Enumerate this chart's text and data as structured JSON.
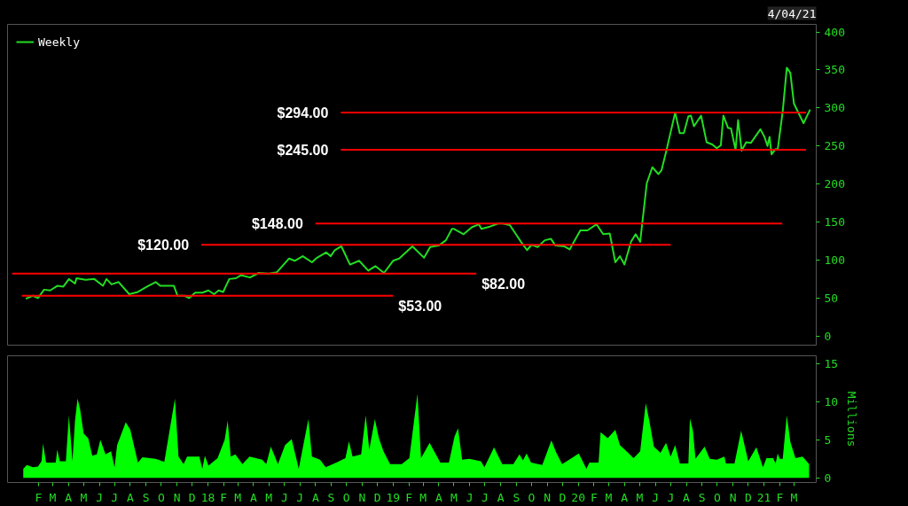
{
  "chart_data": [
    {
      "type": "line",
      "subtitle": "4/04/21",
      "legend": "top left",
      "tick_labels": "y",
      "xlim": [
        "2016-12-02",
        "2021-04-14"
      ],
      "ylim": [
        -12,
        410
      ],
      "yticks": [
        0,
        50,
        100,
        150,
        200,
        250,
        300,
        350,
        400
      ],
      "series": [
        {
          "name": "Weekly",
          "color": "#22dd22",
          "x": [
            "2017-01-07",
            "2017-01-21",
            "2017-01-31",
            "2017-02-12",
            "2017-02-24",
            "2017-03-10",
            "2017-03-22",
            "2017-04-02",
            "2017-04-14",
            "2017-04-17",
            "2017-05-05",
            "2017-05-22",
            "2017-06-08",
            "2017-06-15",
            "2017-06-25",
            "2017-07-09",
            "2017-07-30",
            "2017-08-16",
            "2017-09-03",
            "2017-09-20",
            "2017-09-29",
            "2017-10-26",
            "2017-11-02",
            "2017-11-16",
            "2017-11-25",
            "2017-12-07",
            "2017-12-21",
            "2018-01-02",
            "2018-01-13",
            "2018-01-22",
            "2018-01-31",
            "2018-02-12",
            "2018-02-25",
            "2018-03-07",
            "2018-03-25",
            "2018-04-11",
            "2018-04-29",
            "2018-05-17",
            "2018-06-10",
            "2018-06-21",
            "2018-07-07",
            "2018-07-25",
            "2018-08-04",
            "2018-08-22",
            "2018-08-31",
            "2018-09-08",
            "2018-09-21",
            "2018-10-08",
            "2018-10-26",
            "2018-11-13",
            "2018-11-27",
            "2018-12-14",
            "2019-01-01",
            "2019-01-13",
            "2019-02-08",
            "2019-03-03",
            "2019-03-15",
            "2019-04-01",
            "2019-04-15",
            "2019-04-27",
            "2019-05-01",
            "2019-05-20",
            "2019-06-05",
            "2019-06-19",
            "2019-06-24",
            "2019-07-11",
            "2019-07-27",
            "2019-08-05",
            "2019-08-19",
            "2019-08-31",
            "2019-09-10",
            "2019-09-22",
            "2019-10-01",
            "2019-10-13",
            "2019-10-27",
            "2019-11-08",
            "2019-11-17",
            "2019-12-04",
            "2019-12-15",
            "2020-01-05",
            "2020-01-19",
            "2020-02-06",
            "2020-02-19",
            "2020-03-03",
            "2020-03-14",
            "2020-03-23",
            "2020-04-01",
            "2020-04-14",
            "2020-04-23",
            "2020-05-02",
            "2020-05-15",
            "2020-05-26",
            "2020-06-07",
            "2020-06-13",
            "2020-06-22",
            "2020-07-10",
            "2020-07-19",
            "2020-07-27",
            "2020-08-05",
            "2020-08-10",
            "2020-08-16",
            "2020-08-30",
            "2020-09-10",
            "2020-09-21",
            "2020-09-30",
            "2020-10-08",
            "2020-10-13",
            "2020-10-22",
            "2020-10-28",
            "2020-11-06",
            "2020-11-11",
            "2020-11-18",
            "2020-11-27",
            "2020-12-06",
            "2020-12-25",
            "2021-01-02",
            "2021-01-08",
            "2021-01-12",
            "2021-01-16",
            "2021-01-24",
            "2021-01-28",
            "2021-02-07",
            "2021-02-15",
            "2021-02-22",
            "2021-03-01",
            "2021-03-06",
            "2021-03-20",
            "2021-04-02"
          ],
          "values": [
            49,
            53,
            50,
            61,
            60,
            66,
            65,
            75,
            69,
            76,
            74,
            75,
            66,
            75,
            68,
            71,
            55,
            58,
            65,
            71,
            66,
            66,
            53,
            53,
            50,
            57,
            57,
            60,
            55,
            60,
            58,
            75,
            76,
            80,
            77,
            83,
            82,
            84,
            102,
            99,
            105,
            97,
            103,
            110,
            105,
            113,
            118,
            94,
            99,
            86,
            92,
            83,
            99,
            102,
            118,
            103,
            117,
            119,
            126,
            141,
            141,
            134,
            143,
            147,
            141,
            144,
            148,
            148,
            146,
            134,
            124,
            113,
            120,
            117,
            126,
            128,
            119,
            118,
            114,
            139,
            139,
            147,
            134,
            135,
            97,
            105,
            94,
            124,
            134,
            124,
            201,
            222,
            213,
            218,
            242,
            294,
            267,
            267,
            289,
            290,
            276,
            290,
            255,
            252,
            247,
            251,
            290,
            274,
            273,
            245,
            284,
            244,
            255,
            254,
            272,
            262,
            250,
            262,
            239,
            246,
            245,
            296,
            353,
            346,
            306,
            299,
            280,
            298
          ]
        },
        {
          "type": "line",
          "color": "#ff0000",
          "x": [
            "2018-09-20",
            "2021-03-25"
          ],
          "values": [
            294,
            294
          ]
        },
        {
          "type": "line",
          "color": "#ff0000",
          "x": [
            "2018-09-20",
            "2021-03-25"
          ],
          "values": [
            245,
            245
          ]
        },
        {
          "type": "line",
          "color": "#ff0000",
          "x": [
            "2018-08-01",
            "2021-02-06"
          ],
          "values": [
            148,
            148
          ]
        },
        {
          "type": "line",
          "color": "#ff0000",
          "x": [
            "2017-12-19",
            "2020-07-01"
          ],
          "values": [
            120,
            120
          ]
        },
        {
          "type": "line",
          "color": "#ff0000",
          "x": [
            "2016-12-11",
            "2019-06-14"
          ],
          "values": [
            82,
            82
          ]
        },
        {
          "type": "line",
          "color": "#ff0000",
          "x": [
            "2016-12-30",
            "2019-01-01"
          ],
          "values": [
            53,
            53
          ]
        }
      ],
      "annotations": [
        {
          "text": "$294.00",
          "x": "2018-09-20",
          "y": 294
        },
        {
          "text": "$245.00",
          "x": "2018-09-20",
          "y": 245
        },
        {
          "text": "$148.00",
          "x": "2018-08-01",
          "y": 148
        },
        {
          "text": "$120.00",
          "x": "2017-12-19",
          "y": 120
        },
        {
          "text": "$82.00",
          "x": "2019-06-14",
          "y": 82
        },
        {
          "text": "$53.00",
          "x": "2019-01-01",
          "y": 53
        }
      ]
    },
    {
      "type": "area",
      "ylabel": "Millions",
      "xlim": [
        "2016-12-02",
        "2021-04-14"
      ],
      "ylim": [
        -0.6,
        16
      ],
      "yticks": [
        0,
        5,
        10,
        15
      ],
      "xticks": [
        {
          "value": "2017-02-01",
          "label": "F"
        },
        {
          "value": "2017-03-01",
          "label": "M"
        },
        {
          "value": "2017-04-01",
          "label": "A"
        },
        {
          "value": "2017-05-01",
          "label": "M"
        },
        {
          "value": "2017-06-01",
          "label": "J"
        },
        {
          "value": "2017-07-01",
          "label": "J"
        },
        {
          "value": "2017-08-01",
          "label": "A"
        },
        {
          "value": "2017-09-01",
          "label": "S"
        },
        {
          "value": "2017-10-01",
          "label": "O"
        },
        {
          "value": "2017-11-01",
          "label": "N"
        },
        {
          "value": "2017-12-01",
          "label": "D"
        },
        {
          "value": "2018-01-01",
          "label": "18"
        },
        {
          "value": "2018-02-01",
          "label": "F"
        },
        {
          "value": "2018-03-01",
          "label": "M"
        },
        {
          "value": "2018-04-01",
          "label": "A"
        },
        {
          "value": "2018-05-01",
          "label": "M"
        },
        {
          "value": "2018-06-01",
          "label": "J"
        },
        {
          "value": "2018-07-01",
          "label": "J"
        },
        {
          "value": "2018-08-01",
          "label": "A"
        },
        {
          "value": "2018-09-01",
          "label": "S"
        },
        {
          "value": "2018-10-01",
          "label": "O"
        },
        {
          "value": "2018-11-01",
          "label": "N"
        },
        {
          "value": "2018-12-01",
          "label": "D"
        },
        {
          "value": "2019-01-01",
          "label": "19"
        },
        {
          "value": "2019-02-01",
          "label": "F"
        },
        {
          "value": "2019-03-01",
          "label": "M"
        },
        {
          "value": "2019-04-01",
          "label": "A"
        },
        {
          "value": "2019-05-01",
          "label": "M"
        },
        {
          "value": "2019-06-01",
          "label": "J"
        },
        {
          "value": "2019-07-01",
          "label": "J"
        },
        {
          "value": "2019-08-01",
          "label": "A"
        },
        {
          "value": "2019-09-01",
          "label": "S"
        },
        {
          "value": "2019-10-01",
          "label": "O"
        },
        {
          "value": "2019-11-01",
          "label": "N"
        },
        {
          "value": "2019-12-01",
          "label": "D"
        },
        {
          "value": "2020-01-01",
          "label": "20"
        },
        {
          "value": "2020-02-01",
          "label": "F"
        },
        {
          "value": "2020-03-01",
          "label": "M"
        },
        {
          "value": "2020-04-01",
          "label": "A"
        },
        {
          "value": "2020-05-01",
          "label": "M"
        },
        {
          "value": "2020-06-01",
          "label": "J"
        },
        {
          "value": "2020-07-01",
          "label": "J"
        },
        {
          "value": "2020-08-01",
          "label": "A"
        },
        {
          "value": "2020-09-01",
          "label": "S"
        },
        {
          "value": "2020-10-01",
          "label": "O"
        },
        {
          "value": "2020-11-01",
          "label": "N"
        },
        {
          "value": "2020-12-01",
          "label": "D"
        },
        {
          "value": "2021-01-01",
          "label": "21"
        },
        {
          "value": "2021-02-01",
          "label": "F"
        },
        {
          "value": "2021-03-01",
          "label": "M"
        }
      ],
      "series": [
        {
          "color": "#00ff00",
          "x": [
            "2017-01-02",
            "2017-01-09",
            "2017-01-21",
            "2017-01-31",
            "2017-02-07",
            "2017-02-10",
            "2017-02-16",
            "2017-03-07",
            "2017-03-10",
            "2017-03-15",
            "2017-03-27",
            "2017-04-02",
            "2017-04-05",
            "2017-04-09",
            "2017-04-14",
            "2017-04-19",
            "2017-04-24",
            "2017-05-01",
            "2017-05-10",
            "2017-05-18",
            "2017-05-27",
            "2017-06-03",
            "2017-06-13",
            "2017-06-24",
            "2017-07-01",
            "2017-07-06",
            "2017-07-23",
            "2017-08-01",
            "2017-08-16",
            "2017-08-25",
            "2017-09-20",
            "2017-10-07",
            "2017-10-28",
            "2017-11-04",
            "2017-11-14",
            "2017-11-21",
            "2017-12-15",
            "2017-12-21",
            "2017-12-26",
            "2018-01-02",
            "2018-01-20",
            "2018-02-03",
            "2018-02-09",
            "2018-02-15",
            "2018-02-24",
            "2018-03-10",
            "2018-03-24",
            "2018-04-18",
            "2018-04-26",
            "2018-05-05",
            "2018-05-19",
            "2018-06-02",
            "2018-06-15",
            "2018-06-29",
            "2018-07-18",
            "2018-07-25",
            "2018-08-10",
            "2018-08-21",
            "2018-09-11",
            "2018-09-29",
            "2018-10-06",
            "2018-10-13",
            "2018-10-30",
            "2018-11-08",
            "2018-11-15",
            "2018-11-26",
            "2018-12-04",
            "2018-12-13",
            "2018-12-26",
            "2019-01-18",
            "2019-02-02",
            "2019-02-18",
            "2019-02-25",
            "2019-03-14",
            "2019-04-04",
            "2019-04-21",
            "2019-05-02",
            "2019-05-09",
            "2019-05-17",
            "2019-05-31",
            "2019-06-23",
            "2019-06-30",
            "2019-07-19",
            "2019-08-04",
            "2019-08-26",
            "2019-09-07",
            "2019-09-14",
            "2019-09-21",
            "2019-09-30",
            "2019-10-22",
            "2019-11-09",
            "2019-11-18",
            "2019-11-30",
            "2019-12-12",
            "2020-01-02",
            "2020-01-17",
            "2020-01-23",
            "2020-02-10",
            "2020-02-14",
            "2020-02-28",
            "2020-03-14",
            "2020-03-23",
            "2020-04-05",
            "2020-04-19",
            "2020-05-02",
            "2020-05-13",
            "2020-05-20",
            "2020-05-29",
            "2020-06-11",
            "2020-06-22",
            "2020-07-01",
            "2020-07-10",
            "2020-07-19",
            "2020-08-05",
            "2020-08-08",
            "2020-08-14",
            "2020-08-19",
            "2020-09-06",
            "2020-09-16",
            "2020-09-30",
            "2020-10-15",
            "2020-10-18",
            "2020-11-04",
            "2020-11-17",
            "2020-12-01",
            "2020-12-17",
            "2020-12-30",
            "2021-01-06",
            "2021-01-19",
            "2021-01-24",
            "2021-01-28",
            "2021-02-01",
            "2021-02-07",
            "2021-02-15",
            "2021-02-22",
            "2021-03-04",
            "2021-03-18",
            "2021-03-31"
          ],
          "values": [
            1.2,
            1.7,
            1.4,
            1.5,
            2.2,
            4.5,
            2.0,
            2.0,
            3.7,
            2.2,
            2.2,
            8.2,
            5.6,
            2.2,
            7.5,
            10.4,
            9.0,
            5.8,
            5.2,
            2.9,
            3.1,
            5.0,
            3.1,
            3.5,
            1.4,
            4.3,
            7.3,
            6.3,
            2.0,
            2.7,
            2.5,
            2.1,
            10.4,
            2.8,
            1.8,
            2.8,
            2.8,
            1.2,
            2.9,
            1.6,
            2.6,
            5.0,
            7.5,
            2.8,
            3.1,
            1.8,
            2.8,
            2.4,
            1.8,
            4.1,
            1.8,
            4.3,
            5.1,
            1.2,
            7.7,
            2.8,
            2.4,
            1.4,
            2.0,
            2.6,
            4.8,
            2.8,
            3.1,
            8.2,
            3.7,
            7.7,
            5.2,
            3.5,
            1.8,
            1.8,
            2.6,
            11.0,
            2.6,
            4.6,
            2.0,
            2.0,
            5.4,
            6.5,
            2.4,
            2.5,
            2.2,
            1.4,
            4.0,
            1.8,
            1.8,
            3.1,
            2.3,
            3.2,
            2.0,
            1.7,
            4.9,
            3.4,
            1.8,
            2.3,
            3.2,
            1.2,
            2.0,
            2.0,
            6.0,
            5.2,
            6.3,
            4.3,
            3.5,
            2.6,
            3.5,
            9.8,
            7.5,
            4.1,
            3.3,
            4.6,
            2.8,
            4.3,
            1.9,
            1.9,
            7.8,
            6.2,
            2.5,
            4.1,
            2.5,
            2.4,
            2.8,
            1.9,
            1.9,
            6.2,
            2.2,
            4.0,
            1.4,
            2.6,
            2.6,
            1.9,
            3.2,
            2.5,
            2.5,
            8.2,
            4.7,
            2.6,
            2.8,
            1.8
          ]
        }
      ]
    }
  ]
}
